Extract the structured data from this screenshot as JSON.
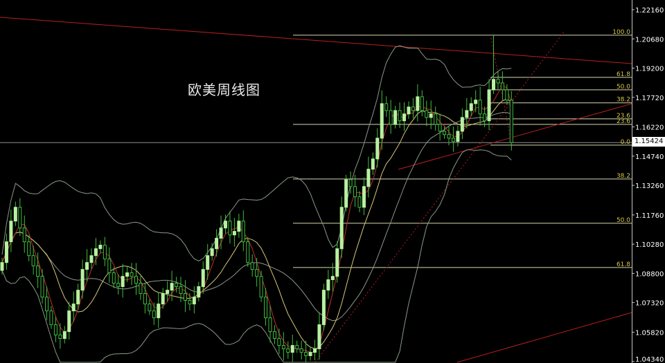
{
  "chart_data": {
    "type": "candlestick",
    "title": "欧美周线图",
    "ylim": [
      1.042,
      1.225
    ],
    "y_ticks": [
      "1.22160",
      "1.20680",
      "1.19200",
      "1.17720",
      "1.16220",
      "1.14740",
      "1.13260",
      "1.11760",
      "1.10280",
      "1.08800",
      "1.07320",
      "1.05820",
      "1.04340"
    ],
    "current_price": "1.15424",
    "close": [
      1.0935,
      1.104,
      1.1145,
      1.1215,
      1.111,
      1.104,
      1.097,
      1.0918,
      1.0865,
      1.076,
      1.069,
      1.062,
      1.0568,
      1.055,
      1.0585,
      1.069,
      1.0725,
      1.0795,
      1.09,
      1.0935,
      1.097,
      1.1005,
      1.1023,
      1.0953,
      1.0883,
      1.083,
      1.0813,
      1.0865,
      1.0883,
      1.0865,
      1.083,
      1.0778,
      1.0725,
      1.069,
      1.0655,
      1.0725,
      1.0778,
      1.0795,
      1.083,
      1.0813,
      1.0778,
      1.0743,
      1.0725,
      1.076,
      1.0813,
      1.09,
      1.097,
      1.1005,
      1.1058,
      1.111,
      1.1145,
      1.1075,
      1.1093,
      1.1145,
      1.104,
      1.0935,
      1.09,
      1.0865,
      1.076,
      1.0655,
      1.0585,
      1.055,
      1.0515,
      1.0498,
      1.048,
      1.0515,
      1.0498,
      1.048,
      1.0463,
      1.048,
      1.0498,
      1.062,
      1.0795,
      1.0848,
      1.0865,
      1.1005,
      1.1215,
      1.1355,
      1.132,
      1.1268,
      1.1215,
      1.132,
      1.1408,
      1.146,
      1.1565,
      1.174,
      1.1705,
      1.1635,
      1.1705,
      1.1653,
      1.1688,
      1.1723,
      1.1705,
      1.1775,
      1.1705,
      1.167,
      1.1688,
      1.1635,
      1.16,
      1.1583,
      1.1565,
      1.1548,
      1.16,
      1.167,
      1.1705,
      1.174,
      1.1758,
      1.1688,
      1.1653,
      1.181,
      1.1863,
      1.1845,
      1.181,
      1.1758,
      1.15424
    ],
    "spike_high": {
      "index": 110,
      "price": 1.209
    },
    "fibonacci": {
      "long": [
        {
          "label": "100.0",
          "price": 1.2087
        },
        {
          "label": "23.6",
          "price": 1.1635
        },
        {
          "label": "38.2",
          "price": 1.1358
        },
        {
          "label": "50.0",
          "price": 1.1134
        },
        {
          "label": "61.8",
          "price": 1.091
        }
      ],
      "short": [
        {
          "label": "61.8",
          "price": 1.1873
        },
        {
          "label": "50.0",
          "price": 1.181
        },
        {
          "label": "38.2",
          "price": 1.1744
        },
        {
          "label": "23.6",
          "price": 1.1663
        },
        {
          "label": "0.0",
          "price": 1.153
        }
      ]
    },
    "colors": {
      "background": "#000000",
      "bull": "#b8f0a0",
      "bear": "#3fbf3f",
      "ma_fast": "#c0302a",
      "ma_slow": "#d8c878",
      "bands": "#8a9a88",
      "trend": "#b82020",
      "fib": "#d8d8b0",
      "fib_text": "#d6c84a",
      "axis_text": "#ffffff"
    }
  }
}
